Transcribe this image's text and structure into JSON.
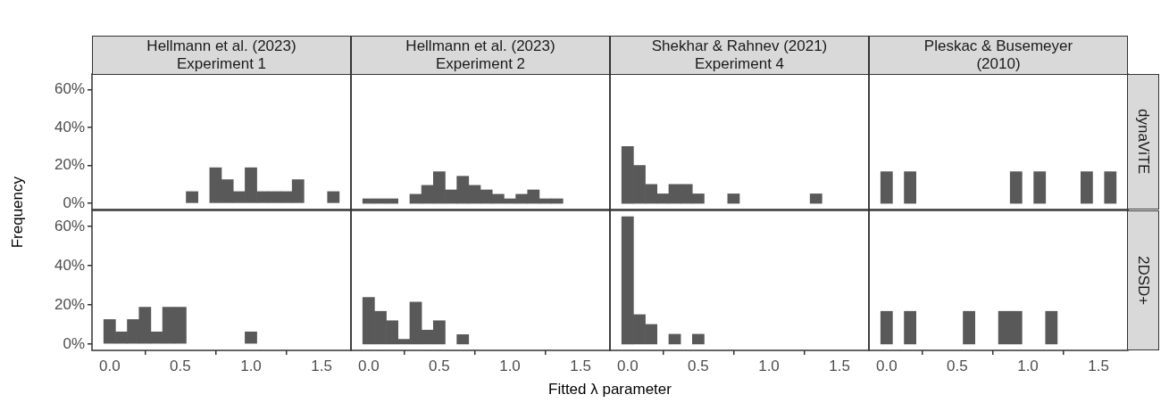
{
  "chart_data": [
    {
      "type": "histogram",
      "title": "Hellmann et al. (2023)\nExperiment 1",
      "ylabel": "Frequency",
      "color": "#595959",
      "bins": [
        -0.042,
        0.042,
        0.125,
        0.208,
        0.292,
        0.375,
        0.458,
        0.542,
        0.625,
        0.708,
        0.792,
        0.875,
        0.958,
        1.042,
        1.125,
        1.208,
        1.292,
        1.375,
        1.458,
        1.542,
        1.625
      ],
      "values": [
        0,
        0,
        0,
        0,
        0,
        0,
        0,
        6.2,
        0,
        18.8,
        12.5,
        6.2,
        18.8,
        6.2,
        6.2,
        6.2,
        12.5,
        0,
        0,
        6.2
      ],
      "xlim": [
        -0.125,
        1.708
      ],
      "ylim": [
        -3.25,
        68.25
      ],
      "yticks": [
        {
          "value": 0,
          "label": "0%"
        },
        {
          "value": 20,
          "label": "20%"
        },
        {
          "value": 40,
          "label": "40%"
        },
        {
          "value": 60,
          "label": "60%"
        }
      ],
      "tick_labels": "y"
    },
    {
      "type": "histogram",
      "title": "Hellmann et al. (2023)\nExperiment 2",
      "color": "#595959",
      "bins": [
        -0.042,
        0.042,
        0.125,
        0.208,
        0.292,
        0.375,
        0.458,
        0.542,
        0.625,
        0.708,
        0.792,
        0.875,
        0.958,
        1.042,
        1.125,
        1.208,
        1.292,
        1.375,
        1.458,
        1.542,
        1.625
      ],
      "values": [
        2.4,
        2.4,
        2.4,
        0,
        4.8,
        9.5,
        16.7,
        7.1,
        14.3,
        9.5,
        7.1,
        4.8,
        2.4,
        4.8,
        7.1,
        2.4,
        2.4,
        0,
        0,
        0
      ],
      "xlim": [
        -0.125,
        1.708
      ],
      "ylim": [
        -3.25,
        68.25
      ],
      "tick_labels": false
    },
    {
      "type": "histogram",
      "title": "Shekhar & Rahnev (2021)\nExperiment 4",
      "color": "#595959",
      "bins": [
        -0.042,
        0.042,
        0.125,
        0.208,
        0.292,
        0.375,
        0.458,
        0.542,
        0.625,
        0.708,
        0.792,
        0.875,
        0.958,
        1.042,
        1.125,
        1.208,
        1.292,
        1.375,
        1.458,
        1.542,
        1.625
      ],
      "values": [
        30,
        20,
        10,
        5,
        10,
        10,
        5,
        0,
        0,
        5,
        0,
        0,
        0,
        0,
        0,
        0,
        5,
        0,
        0,
        0
      ],
      "xlim": [
        -0.125,
        1.708
      ],
      "ylim": [
        -3.25,
        68.25
      ],
      "tick_labels": false
    },
    {
      "type": "histogram",
      "title": "Pleskac & Busemeyer\n(2010)",
      "subtitle": "dynaViTE",
      "color": "#595959",
      "bins": [
        -0.042,
        0.042,
        0.125,
        0.208,
        0.292,
        0.375,
        0.458,
        0.542,
        0.625,
        0.708,
        0.792,
        0.875,
        0.958,
        1.042,
        1.125,
        1.208,
        1.292,
        1.375,
        1.458,
        1.542,
        1.625
      ],
      "values": [
        16.7,
        0,
        16.7,
        0,
        0,
        0,
        0,
        0,
        0,
        0,
        0,
        16.7,
        0,
        16.7,
        0,
        0,
        0,
        16.7,
        0,
        16.7
      ],
      "xlim": [
        -0.125,
        1.708
      ],
      "ylim": [
        -3.25,
        68.25
      ],
      "tick_labels": false
    },
    {
      "type": "histogram",
      "color": "#595959",
      "bins": [
        -0.042,
        0.042,
        0.125,
        0.208,
        0.292,
        0.375,
        0.458,
        0.542,
        0.625,
        0.708,
        0.792,
        0.875,
        0.958,
        1.042,
        1.125,
        1.208,
        1.292,
        1.375,
        1.458,
        1.542,
        1.625
      ],
      "values": [
        12.5,
        6.2,
        12.5,
        18.8,
        6.2,
        18.8,
        18.8,
        0,
        0,
        0,
        0,
        0,
        6.2,
        0,
        0,
        0,
        0,
        0,
        0,
        0
      ],
      "xlim": [
        -0.125,
        1.708
      ],
      "xticks": [
        {
          "value": 0,
          "label": "0.0"
        },
        {
          "value": 0.5,
          "label": "0.5"
        },
        {
          "value": 1,
          "label": "1.0"
        },
        {
          "value": 1.5,
          "label": "1.5"
        }
      ],
      "ylim": [
        -3.25,
        68.25
      ],
      "yticks": [
        {
          "value": 0,
          "label": "0%"
        },
        {
          "value": 20,
          "label": "20%"
        },
        {
          "value": 40,
          "label": "40%"
        },
        {
          "value": 60,
          "label": "60%"
        }
      ]
    },
    {
      "type": "histogram",
      "xlabel": "Fitted λ parameter",
      "color": "#595959",
      "bins": [
        -0.042,
        0.042,
        0.125,
        0.208,
        0.292,
        0.375,
        0.458,
        0.542,
        0.625,
        0.708,
        0.792,
        0.875,
        0.958,
        1.042,
        1.125,
        1.208,
        1.292,
        1.375,
        1.458,
        1.542,
        1.625
      ],
      "values": [
        23.8,
        16.7,
        11.9,
        2.4,
        21.4,
        7.1,
        11.9,
        0,
        4.8,
        0,
        0,
        0,
        0,
        0,
        0,
        0,
        0,
        0,
        0,
        0
      ],
      "xlim": [
        -0.125,
        1.708
      ],
      "xticks": [
        {
          "value": 0,
          "label": "0.0"
        },
        {
          "value": 0.5,
          "label": "0.5"
        },
        {
          "value": 1,
          "label": "1.0"
        },
        {
          "value": 1.5,
          "label": "1.5"
        }
      ],
      "ylim": [
        -3.25,
        68.25
      ],
      "tick_labels": "x"
    },
    {
      "type": "histogram",
      "color": "#595959",
      "bins": [
        -0.042,
        0.042,
        0.125,
        0.208,
        0.292,
        0.375,
        0.458,
        0.542,
        0.625,
        0.708,
        0.792,
        0.875,
        0.958,
        1.042,
        1.125,
        1.208,
        1.292,
        1.375,
        1.458,
        1.542,
        1.625
      ],
      "values": [
        65,
        15,
        10,
        0,
        5,
        0,
        5,
        0,
        0,
        0,
        0,
        0,
        0,
        0,
        0,
        0,
        0,
        0,
        0,
        0
      ],
      "xlim": [
        -0.125,
        1.708
      ],
      "xticks": [
        {
          "value": 0,
          "label": "0.0"
        },
        {
          "value": 0.5,
          "label": "0.5"
        },
        {
          "value": 1,
          "label": "1.0"
        },
        {
          "value": 1.5,
          "label": "1.5"
        }
      ],
      "ylim": [
        -3.25,
        68.25
      ],
      "tick_labels": "x"
    },
    {
      "type": "histogram",
      "subtitle": "2DSD+",
      "color": "#595959",
      "bins": [
        -0.042,
        0.042,
        0.125,
        0.208,
        0.292,
        0.375,
        0.458,
        0.542,
        0.625,
        0.708,
        0.792,
        0.875,
        0.958,
        1.042,
        1.125,
        1.208,
        1.292,
        1.375,
        1.458,
        1.542,
        1.625
      ],
      "values": [
        16.7,
        0,
        16.7,
        0,
        0,
        0,
        0,
        16.7,
        0,
        0,
        16.7,
        16.7,
        0,
        0,
        16.7,
        0,
        0,
        0,
        0,
        0
      ],
      "xlim": [
        -0.125,
        1.708
      ],
      "xticks": [
        {
          "value": 0,
          "label": "0.0"
        },
        {
          "value": 0.5,
          "label": "0.5"
        },
        {
          "value": 1,
          "label": "1.0"
        },
        {
          "value": 1.5,
          "label": "1.5"
        }
      ],
      "ylim": [
        -3.25,
        68.25
      ],
      "tick_labels": "x"
    }
  ]
}
